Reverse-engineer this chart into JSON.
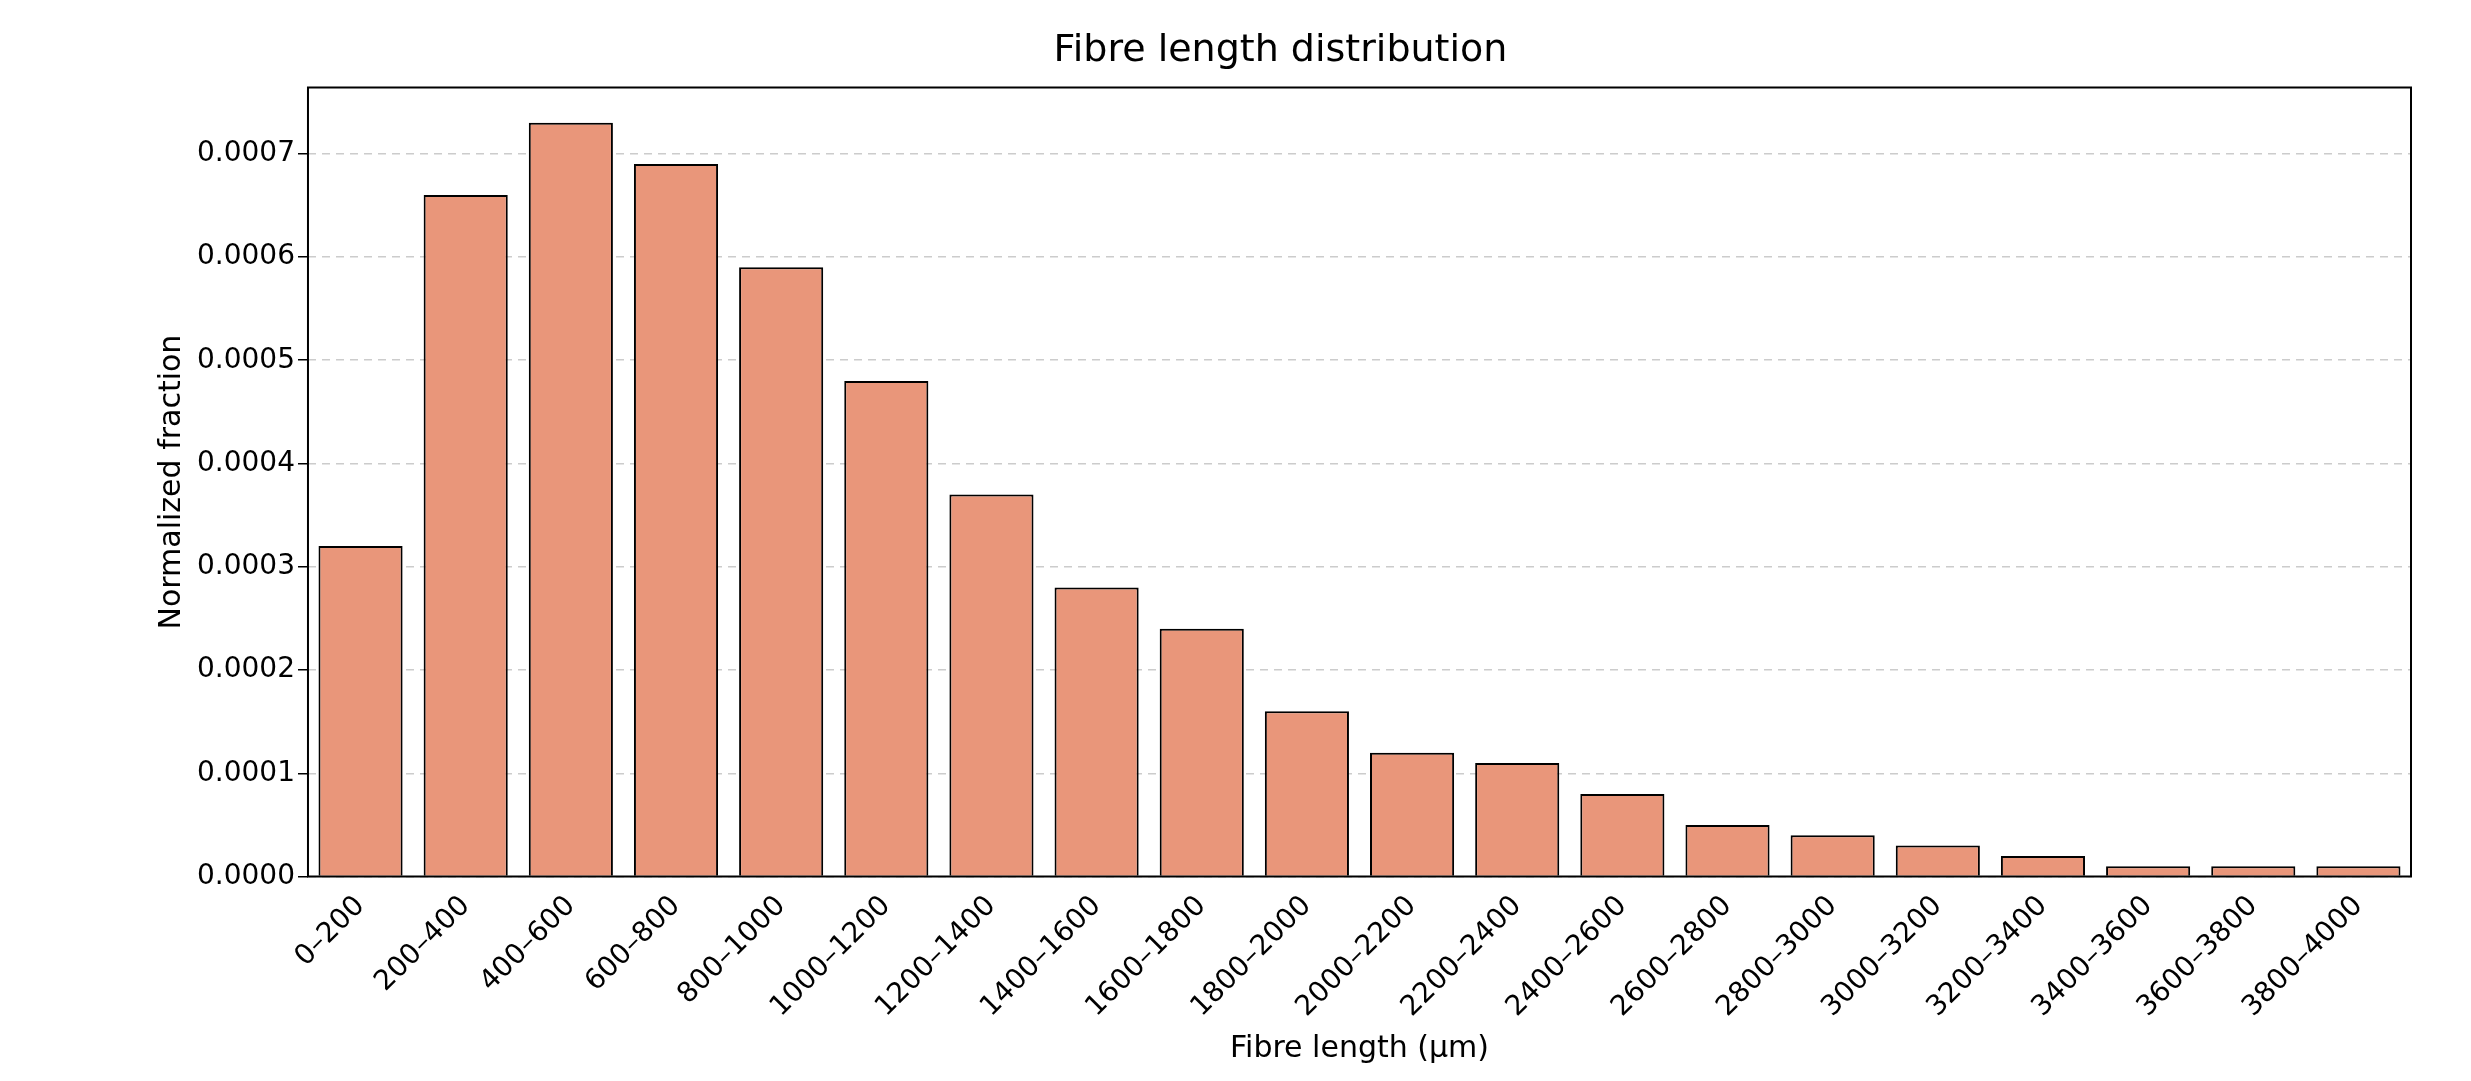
{
  "chart_data": {
    "type": "bar",
    "title": "Fibre length distribution",
    "xlabel": "Fibre length (µm)",
    "ylabel": "Normalized fraction",
    "categories": [
      "0–200",
      "200–400",
      "400–600",
      "600–800",
      "800–1000",
      "1000–1200",
      "1200–1400",
      "1400–1600",
      "1600–1800",
      "1800–2000",
      "2000–2200",
      "2200–2400",
      "2400–2600",
      "2600–2800",
      "2800–3000",
      "3000–3200",
      "3200–3400",
      "3400–3600",
      "3600–3800",
      "3800–4000"
    ],
    "values": [
      0.00032,
      0.00066,
      0.00073,
      0.00069,
      0.00059,
      0.00048,
      0.00037,
      0.00028,
      0.00024,
      0.00016,
      0.00012,
      0.00011,
      8e-05,
      5e-05,
      4e-05,
      3e-05,
      2e-05,
      1e-05,
      1e-05,
      1e-05
    ],
    "color": "#e9967a",
    "ylim": [
      0,
      0.000764
    ],
    "yticks": [
      {
        "value": 0,
        "label": "0.0000"
      },
      {
        "value": 0.0001,
        "label": "0.0001"
      },
      {
        "value": 0.0002,
        "label": "0.0002"
      },
      {
        "value": 0.0003,
        "label": "0.0003"
      },
      {
        "value": 0.0004,
        "label": "0.0004"
      },
      {
        "value": 0.0005,
        "label": "0.0005"
      },
      {
        "value": 0.0006,
        "label": "0.0006"
      },
      {
        "value": 0.0007,
        "label": "0.0007"
      }
    ],
    "grid": "y",
    "legend": false
  }
}
